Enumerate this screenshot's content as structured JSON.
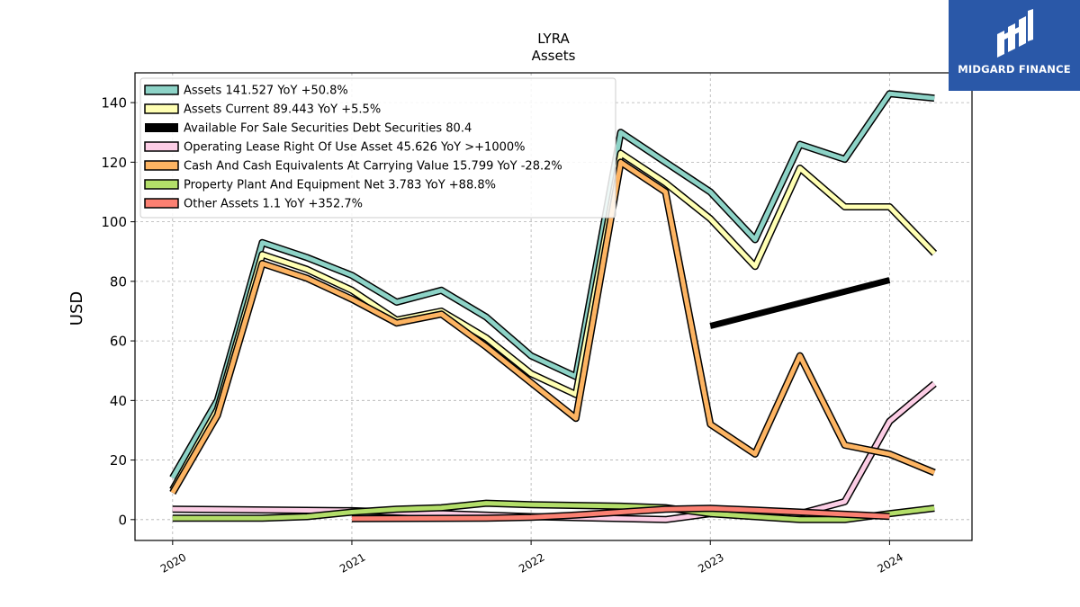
{
  "chart_data": {
    "type": "line",
    "title": "LYRA",
    "subtitle": "Assets",
    "ylabel": "USD",
    "xlabel": "",
    "ylim": [
      -7,
      150
    ],
    "xlim": [
      2019.79,
      2024.46
    ],
    "yticks": [
      0,
      20,
      40,
      60,
      80,
      100,
      120,
      140
    ],
    "xticks": [
      {
        "value": 2020,
        "label": "2020"
      },
      {
        "value": 2021,
        "label": "2021"
      },
      {
        "value": 2022,
        "label": "2022"
      },
      {
        "value": 2023,
        "label": "2023"
      },
      {
        "value": 2024,
        "label": "2024"
      }
    ],
    "grid": true,
    "legend_position": "top-left",
    "series": [
      {
        "name": "Assets  141.527 YoY +50.8%",
        "color": "#8dd3c7",
        "width": 5,
        "points": [
          [
            2020.0,
            14
          ],
          [
            2020.25,
            40
          ],
          [
            2020.5,
            93
          ],
          [
            2020.75,
            88
          ],
          [
            2021.0,
            82
          ],
          [
            2021.25,
            73
          ],
          [
            2021.5,
            77
          ],
          [
            2021.75,
            68
          ],
          [
            2022.0,
            55
          ],
          [
            2022.25,
            48
          ],
          [
            2022.5,
            130
          ],
          [
            2022.75,
            120
          ],
          [
            2023.0,
            110
          ],
          [
            2023.25,
            94
          ],
          [
            2023.5,
            126
          ],
          [
            2023.75,
            121
          ],
          [
            2024.0,
            143
          ],
          [
            2024.25,
            141.5
          ]
        ]
      },
      {
        "name": "Assets Current  89.443 YoY +5.5%",
        "color": "#ffffb3",
        "width": 5,
        "points": [
          [
            2020.0,
            10
          ],
          [
            2020.25,
            37
          ],
          [
            2020.5,
            89
          ],
          [
            2020.75,
            84
          ],
          [
            2021.0,
            77
          ],
          [
            2021.25,
            67
          ],
          [
            2021.5,
            70
          ],
          [
            2021.75,
            61
          ],
          [
            2022.0,
            49
          ],
          [
            2022.25,
            42
          ],
          [
            2022.5,
            123
          ],
          [
            2022.75,
            113
          ],
          [
            2023.0,
            101
          ],
          [
            2023.25,
            85
          ],
          [
            2023.5,
            118
          ],
          [
            2023.75,
            105
          ],
          [
            2024.0,
            105
          ],
          [
            2024.25,
            89.4
          ]
        ]
      },
      {
        "name": "Available For Sale Securities Debt Securities  80.4",
        "color": "#000000",
        "width": 7,
        "points": [
          [
            2023.0,
            65
          ],
          [
            2024.0,
            80.4
          ]
        ]
      },
      {
        "name": "Operating Lease Right Of Use Asset  45.626 YoY >+1000%",
        "color": "#fccde5",
        "width": 5,
        "points": [
          [
            2020.0,
            3.5
          ],
          [
            2021.0,
            3
          ],
          [
            2022.0,
            1
          ],
          [
            2022.75,
            0
          ],
          [
            2023.0,
            2
          ],
          [
            2023.25,
            2
          ],
          [
            2023.5,
            2
          ],
          [
            2023.75,
            6
          ],
          [
            2024.0,
            33
          ],
          [
            2024.25,
            45.6
          ]
        ]
      },
      {
        "name": "Cash And Cash Equivalents At Carrying Value  15.799 YoY -28.2%",
        "color": "#fdb462",
        "width": 5,
        "points": [
          [
            2020.0,
            9
          ],
          [
            2020.25,
            35
          ],
          [
            2020.5,
            86
          ],
          [
            2020.75,
            81
          ],
          [
            2021.0,
            74
          ],
          [
            2021.25,
            66
          ],
          [
            2021.5,
            69
          ],
          [
            2021.75,
            58
          ],
          [
            2022.0,
            46
          ],
          [
            2022.25,
            34
          ],
          [
            2022.5,
            120
          ],
          [
            2022.75,
            110
          ],
          [
            2023.0,
            32
          ],
          [
            2023.25,
            22
          ],
          [
            2023.5,
            55
          ],
          [
            2023.75,
            25
          ],
          [
            2024.0,
            22
          ],
          [
            2024.25,
            15.8
          ]
        ]
      },
      {
        "name": "Property Plant And Equipment Net  3.783 YoY +88.8%",
        "color": "#b3de69",
        "width": 5,
        "points": [
          [
            2020.0,
            0.5
          ],
          [
            2020.5,
            0.5
          ],
          [
            2020.75,
            1
          ],
          [
            2021.0,
            2.5
          ],
          [
            2021.25,
            3.5
          ],
          [
            2021.5,
            4
          ],
          [
            2021.75,
            5.5
          ],
          [
            2022.0,
            5
          ],
          [
            2022.5,
            4.5
          ],
          [
            2022.75,
            4
          ],
          [
            2023.0,
            2
          ],
          [
            2023.25,
            1
          ],
          [
            2023.5,
            0
          ],
          [
            2023.75,
            0
          ],
          [
            2024.0,
            2
          ],
          [
            2024.25,
            3.8
          ]
        ]
      },
      {
        "name": "Other Assets  1.1 YoY +352.7%",
        "color": "#fb8072",
        "width": 5,
        "points": [
          [
            2021.0,
            0.3
          ],
          [
            2021.75,
            0.5
          ],
          [
            2022.0,
            0.8
          ],
          [
            2022.25,
            1.5
          ],
          [
            2022.5,
            2.5
          ],
          [
            2022.75,
            3.5
          ],
          [
            2023.0,
            3.8
          ],
          [
            2023.25,
            3.2
          ],
          [
            2023.5,
            2.5
          ],
          [
            2023.75,
            1.8
          ],
          [
            2024.0,
            1.1
          ]
        ]
      }
    ]
  },
  "branding": {
    "name": "MIDGARD FINANCE",
    "background": "#2a58a8",
    "icon": "midgard-logo-icon"
  }
}
